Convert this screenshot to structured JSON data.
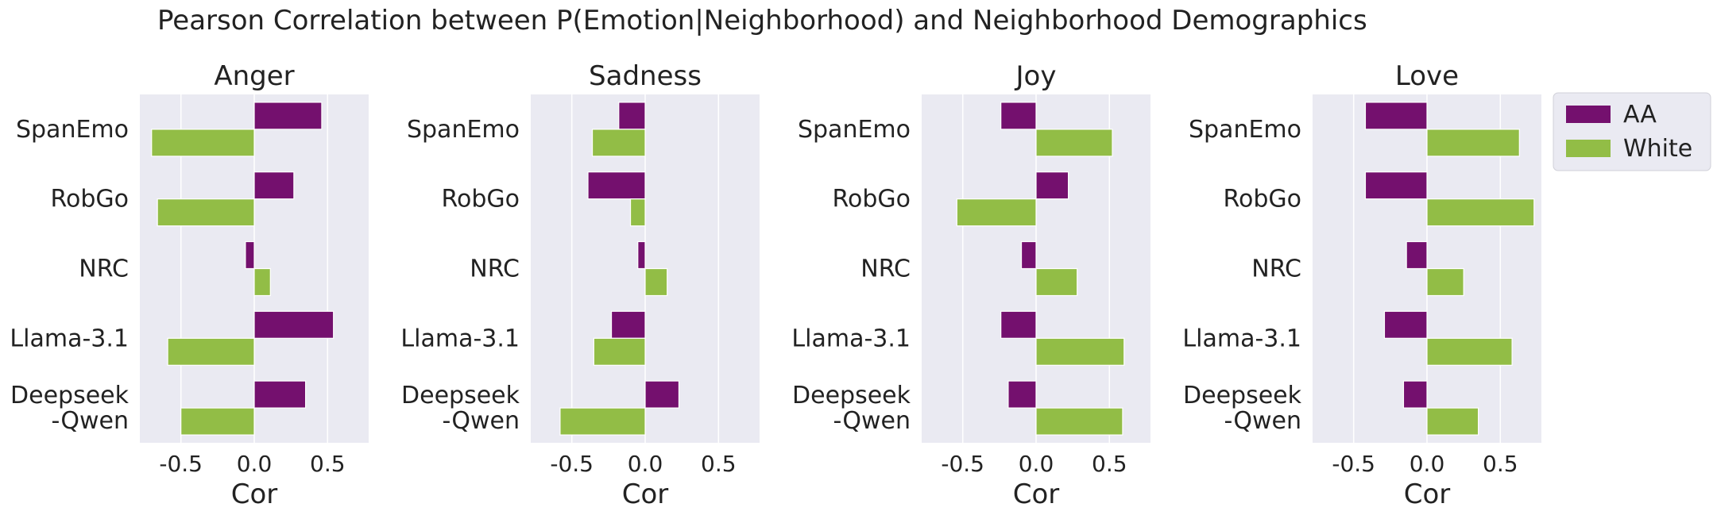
{
  "chart_data": {
    "type": "bar",
    "orientation": "horizontal",
    "title": "Pearson Correlation between P(Emotion|Neighborhood) and Neighborhood Demographics",
    "xlabel": "Cor",
    "xlim": [
      -0.78,
      0.78
    ],
    "xticks": [
      -0.5,
      0.0,
      0.5
    ],
    "xtick_labels": [
      "-0.5",
      "0.0",
      "0.5"
    ],
    "grid": true,
    "legend_position": "outside-right-top",
    "categories": [
      [
        "SpanEmo"
      ],
      [
        "RobGo"
      ],
      [
        "NRC"
      ],
      [
        "Llama-3.1"
      ],
      [
        "Deepseek",
        "-Qwen"
      ]
    ],
    "series_names": [
      "AA",
      "White"
    ],
    "colors": {
      "AA": "#74106e",
      "White": "#92bd46"
    },
    "panels": [
      {
        "title": "Anger",
        "series": [
          {
            "name": "AA",
            "values": [
              0.46,
              0.27,
              -0.06,
              0.54,
              0.35
            ]
          },
          {
            "name": "White",
            "values": [
              -0.7,
              -0.66,
              0.11,
              -0.59,
              -0.5
            ]
          }
        ]
      },
      {
        "title": "Sadness",
        "series": [
          {
            "name": "AA",
            "values": [
              -0.18,
              -0.39,
              -0.05,
              -0.23,
              0.23
            ]
          },
          {
            "name": "White",
            "values": [
              -0.36,
              -0.1,
              0.15,
              -0.35,
              -0.58
            ]
          }
        ]
      },
      {
        "title": "Joy",
        "series": [
          {
            "name": "AA",
            "values": [
              -0.24,
              0.22,
              -0.1,
              -0.24,
              -0.19
            ]
          },
          {
            "name": "White",
            "values": [
              0.52,
              -0.54,
              0.28,
              0.6,
              0.59
            ]
          }
        ]
      },
      {
        "title": "Love",
        "series": [
          {
            "name": "AA",
            "values": [
              -0.42,
              -0.42,
              -0.14,
              -0.29,
              -0.16
            ]
          },
          {
            "name": "White",
            "values": [
              0.63,
              0.73,
              0.25,
              0.58,
              0.35
            ]
          }
        ]
      }
    ]
  }
}
